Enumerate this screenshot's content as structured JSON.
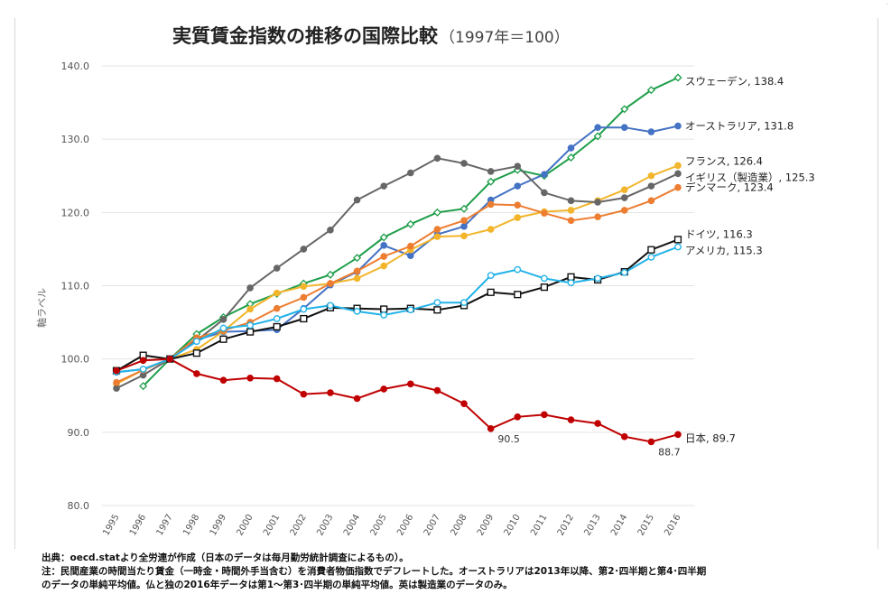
{
  "chart_data": {
    "type": "line",
    "title": "実質賃金指数の推移の国際比較",
    "subtitle": "（1997年＝100）",
    "ylabel": "軸ラベル",
    "xlabel": "",
    "ylim": [
      80,
      140
    ],
    "yticks": [
      "80.0",
      "90.0",
      "100.0",
      "110.0",
      "120.0",
      "130.0",
      "140.0"
    ],
    "grid": true,
    "x": [
      "1995",
      "1996",
      "1997",
      "1998",
      "1999",
      "2000",
      "2001",
      "2002",
      "2003",
      "2004",
      "2005",
      "2006",
      "2007",
      "2008",
      "2009",
      "2010",
      "2011",
      "2012",
      "2013",
      "2014",
      "2015",
      "2016"
    ],
    "series": [
      {
        "name": "スウェーデン",
        "end_label": "スウェーデン, 138.4",
        "color": "#1e9e4a",
        "marker": "diamond-open",
        "values": [
          null,
          96.3,
          100.0,
          103.4,
          105.7,
          107.5,
          108.9,
          110.3,
          111.5,
          113.8,
          116.6,
          118.4,
          120.0,
          120.5,
          124.2,
          125.8,
          125.0,
          127.5,
          130.4,
          134.1,
          136.7,
          138.4
        ]
      },
      {
        "name": "オーストラリア",
        "end_label": "オーストラリア, 131.8",
        "color": "#4472c4",
        "marker": "circle",
        "values": [
          98.2,
          98.6,
          100.0,
          102.6,
          103.7,
          103.8,
          104.0,
          106.9,
          110.1,
          111.9,
          115.5,
          114.1,
          117.0,
          118.1,
          121.7,
          123.6,
          125.2,
          128.8,
          131.6,
          131.6,
          131.0,
          131.8
        ]
      },
      {
        "name": "フランス",
        "end_label": "フランス, 126.4",
        "color": "#f2b52b",
        "marker": "circle",
        "values": [
          96.6,
          98.5,
          100.0,
          101.3,
          103.8,
          106.8,
          109.0,
          109.9,
          110.3,
          111.0,
          112.7,
          114.9,
          116.7,
          116.8,
          117.7,
          119.3,
          120.1,
          120.3,
          121.6,
          123.1,
          125.0,
          126.4
        ]
      },
      {
        "name": "イギリス（製造業）",
        "end_label": "イギリス（製造業）, 125.3",
        "color": "#666666",
        "marker": "circle",
        "values": [
          96.0,
          97.8,
          100.0,
          102.5,
          105.4,
          109.7,
          112.4,
          115.0,
          117.6,
          121.7,
          123.6,
          125.4,
          127.4,
          126.7,
          125.6,
          126.3,
          122.7,
          121.6,
          121.4,
          122.0,
          123.6,
          125.3
        ]
      },
      {
        "name": "デンマーク",
        "end_label": "デンマーク, 123.4",
        "color": "#ed7d31",
        "marker": "circle",
        "values": [
          96.8,
          98.5,
          100.0,
          102.9,
          103.9,
          105.0,
          106.9,
          108.4,
          110.3,
          112.0,
          114.0,
          115.4,
          117.7,
          118.9,
          121.1,
          121.0,
          119.9,
          118.9,
          119.4,
          120.3,
          121.6,
          123.4
        ]
      },
      {
        "name": "ドイツ",
        "end_label": "ドイツ, 116.3",
        "color": "#111111",
        "marker": "square-open",
        "values": [
          98.4,
          100.5,
          100.0,
          100.8,
          102.7,
          103.7,
          104.4,
          105.5,
          107.0,
          106.9,
          106.8,
          106.9,
          106.7,
          107.3,
          109.1,
          108.8,
          109.8,
          111.2,
          110.8,
          111.9,
          114.9,
          116.3
        ]
      },
      {
        "name": "アメリカ",
        "end_label": "アメリカ, 115.3",
        "color": "#22b2e8",
        "marker": "circle-open",
        "values": [
          98.2,
          98.6,
          100.0,
          102.4,
          104.2,
          104.6,
          105.5,
          106.8,
          107.3,
          106.5,
          106.0,
          106.7,
          107.7,
          107.7,
          111.4,
          112.2,
          111.0,
          110.4,
          111.0,
          111.8,
          113.9,
          115.3
        ]
      },
      {
        "name": "日本",
        "end_label": "日本, 89.7",
        "color": "#c00000",
        "marker": "circle",
        "values": [
          98.4,
          99.8,
          100.0,
          98.0,
          97.1,
          97.4,
          97.3,
          95.2,
          95.4,
          94.6,
          95.9,
          96.6,
          95.7,
          93.9,
          90.5,
          92.1,
          92.4,
          91.7,
          91.2,
          89.4,
          88.7,
          89.7
        ]
      }
    ],
    "annotations": [
      {
        "text": "90.5",
        "x": "2009",
        "y": 90.5
      },
      {
        "text": "88.7",
        "x": "2015",
        "y": 88.7
      }
    ]
  },
  "notes": {
    "source": "出典：oecd.statより全労連が作成（日本のデータは毎月勤労統計調査によるもの）。",
    "note1": "注：民間産業の時間当たり賃金（一時金・時間外手当含む）を消費者物価指数でデフレートした。オーストラリアは2013年以降、第2･四半期と第4･四半期",
    "note2": "のデータの単純平均値。仏と独の2016年データは第1～第3･四半期の単純平均値。英は製造業のデータのみ。"
  }
}
